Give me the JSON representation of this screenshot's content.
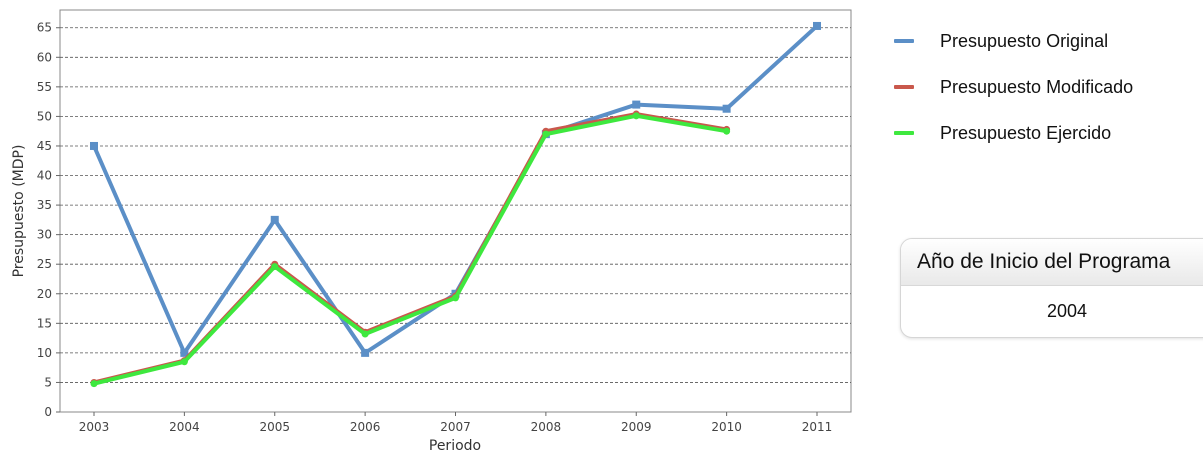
{
  "chart_data": {
    "type": "line",
    "xlabel": "Periodo",
    "ylabel": "Presupuesto (MDP)",
    "categories": [
      "2003",
      "2004",
      "2005",
      "2006",
      "2007",
      "2008",
      "2009",
      "2010",
      "2011"
    ],
    "ylim": [
      0,
      68
    ],
    "yticks": [
      0,
      5,
      10,
      15,
      20,
      25,
      30,
      35,
      40,
      45,
      50,
      55,
      60,
      65
    ],
    "grid": "horizontal dashed",
    "legend_position": "right",
    "series": [
      {
        "name": "Presupuesto Original",
        "color": "#5b8fc7",
        "marker": "square",
        "values": [
          45.0,
          10.0,
          32.5,
          10.0,
          20.0,
          47.0,
          52.0,
          51.3,
          65.3
        ]
      },
      {
        "name": "Presupuesto Modificado",
        "color": "#c9584c",
        "marker": "circle",
        "values": [
          5.0,
          8.7,
          25.0,
          13.5,
          19.6,
          47.5,
          50.4,
          47.8,
          null
        ]
      },
      {
        "name": "Presupuesto Ejercido",
        "color": "#3ee83e",
        "marker": "circle",
        "values": [
          4.8,
          8.5,
          24.6,
          13.2,
          19.3,
          47.0,
          50.1,
          47.5,
          null
        ]
      }
    ]
  },
  "info": {
    "label": "Año de Inicio del Programa",
    "value": "2004"
  }
}
